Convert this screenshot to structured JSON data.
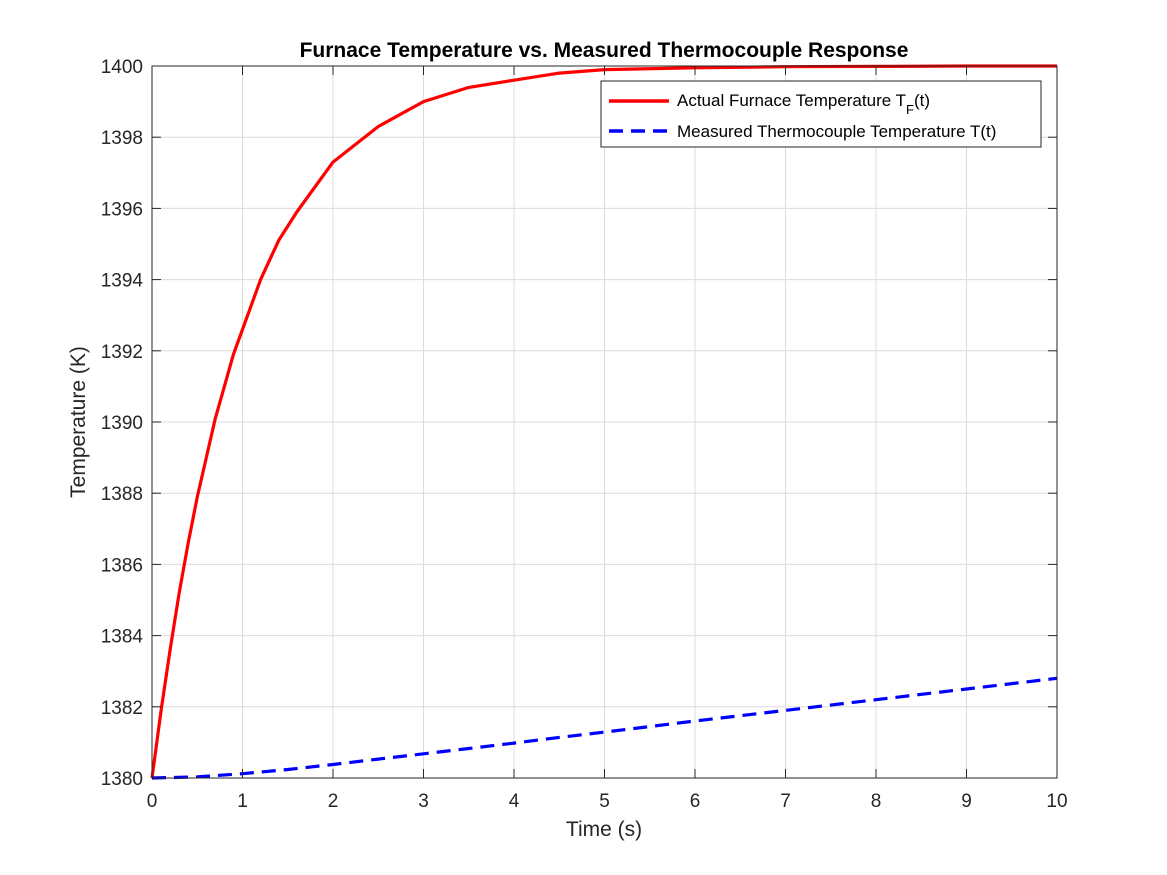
{
  "chart_data": {
    "type": "line",
    "title": "Furnace Temperature vs. Measured Thermocouple Response",
    "xlabel": "Time (s)",
    "ylabel": "Temperature (K)",
    "xlim": [
      0,
      10
    ],
    "ylim": [
      1380,
      1400
    ],
    "xticks": [
      "0",
      "1",
      "2",
      "3",
      "4",
      "5",
      "6",
      "7",
      "8",
      "9",
      "10"
    ],
    "yticks": [
      "1380",
      "1382",
      "1384",
      "1386",
      "1388",
      "1390",
      "1392",
      "1394",
      "1396",
      "1398",
      "1400"
    ],
    "grid": true,
    "legend_position": "top-right",
    "series": [
      {
        "name": "Actual Furnace Temperature T_F(t)",
        "legend_main": "Actual Furnace Temperature T",
        "legend_sub": "F",
        "legend_tail": "(t)",
        "color": "#ff0000",
        "style": "solid",
        "x": [
          0,
          0.1,
          0.2,
          0.3,
          0.4,
          0.5,
          0.6,
          0.7,
          0.8,
          0.9,
          1.0,
          1.2,
          1.4,
          1.6,
          1.8,
          2.0,
          2.5,
          3.0,
          3.5,
          4.0,
          4.5,
          5.0,
          6.0,
          7.0,
          8.0,
          9.0,
          10.0
        ],
        "y": [
          1380,
          1381.9,
          1383.6,
          1385.2,
          1386.6,
          1387.9,
          1389.0,
          1390.1,
          1391.0,
          1391.9,
          1392.6,
          1394.0,
          1395.1,
          1395.9,
          1396.6,
          1397.3,
          1398.3,
          1399.0,
          1399.4,
          1399.6,
          1399.8,
          1399.9,
          1399.95,
          1399.98,
          1399.99,
          1400.0,
          1400.0
        ]
      },
      {
        "name": "Measured Thermocouple Temperature T(t)",
        "legend_main": "Measured Thermocouple Temperature T(t)",
        "legend_sub": "",
        "legend_tail": "",
        "color": "#0000ff",
        "style": "dashed",
        "x": [
          0,
          0.5,
          1.0,
          1.5,
          2.0,
          2.5,
          3.0,
          3.5,
          4.0,
          4.5,
          5.0,
          6.0,
          7.0,
          8.0,
          9.0,
          10.0
        ],
        "y": [
          1380,
          1380.03,
          1380.12,
          1380.24,
          1380.38,
          1380.53,
          1380.68,
          1380.83,
          1380.98,
          1381.14,
          1381.29,
          1381.6,
          1381.9,
          1382.2,
          1382.5,
          1382.8
        ]
      }
    ]
  }
}
